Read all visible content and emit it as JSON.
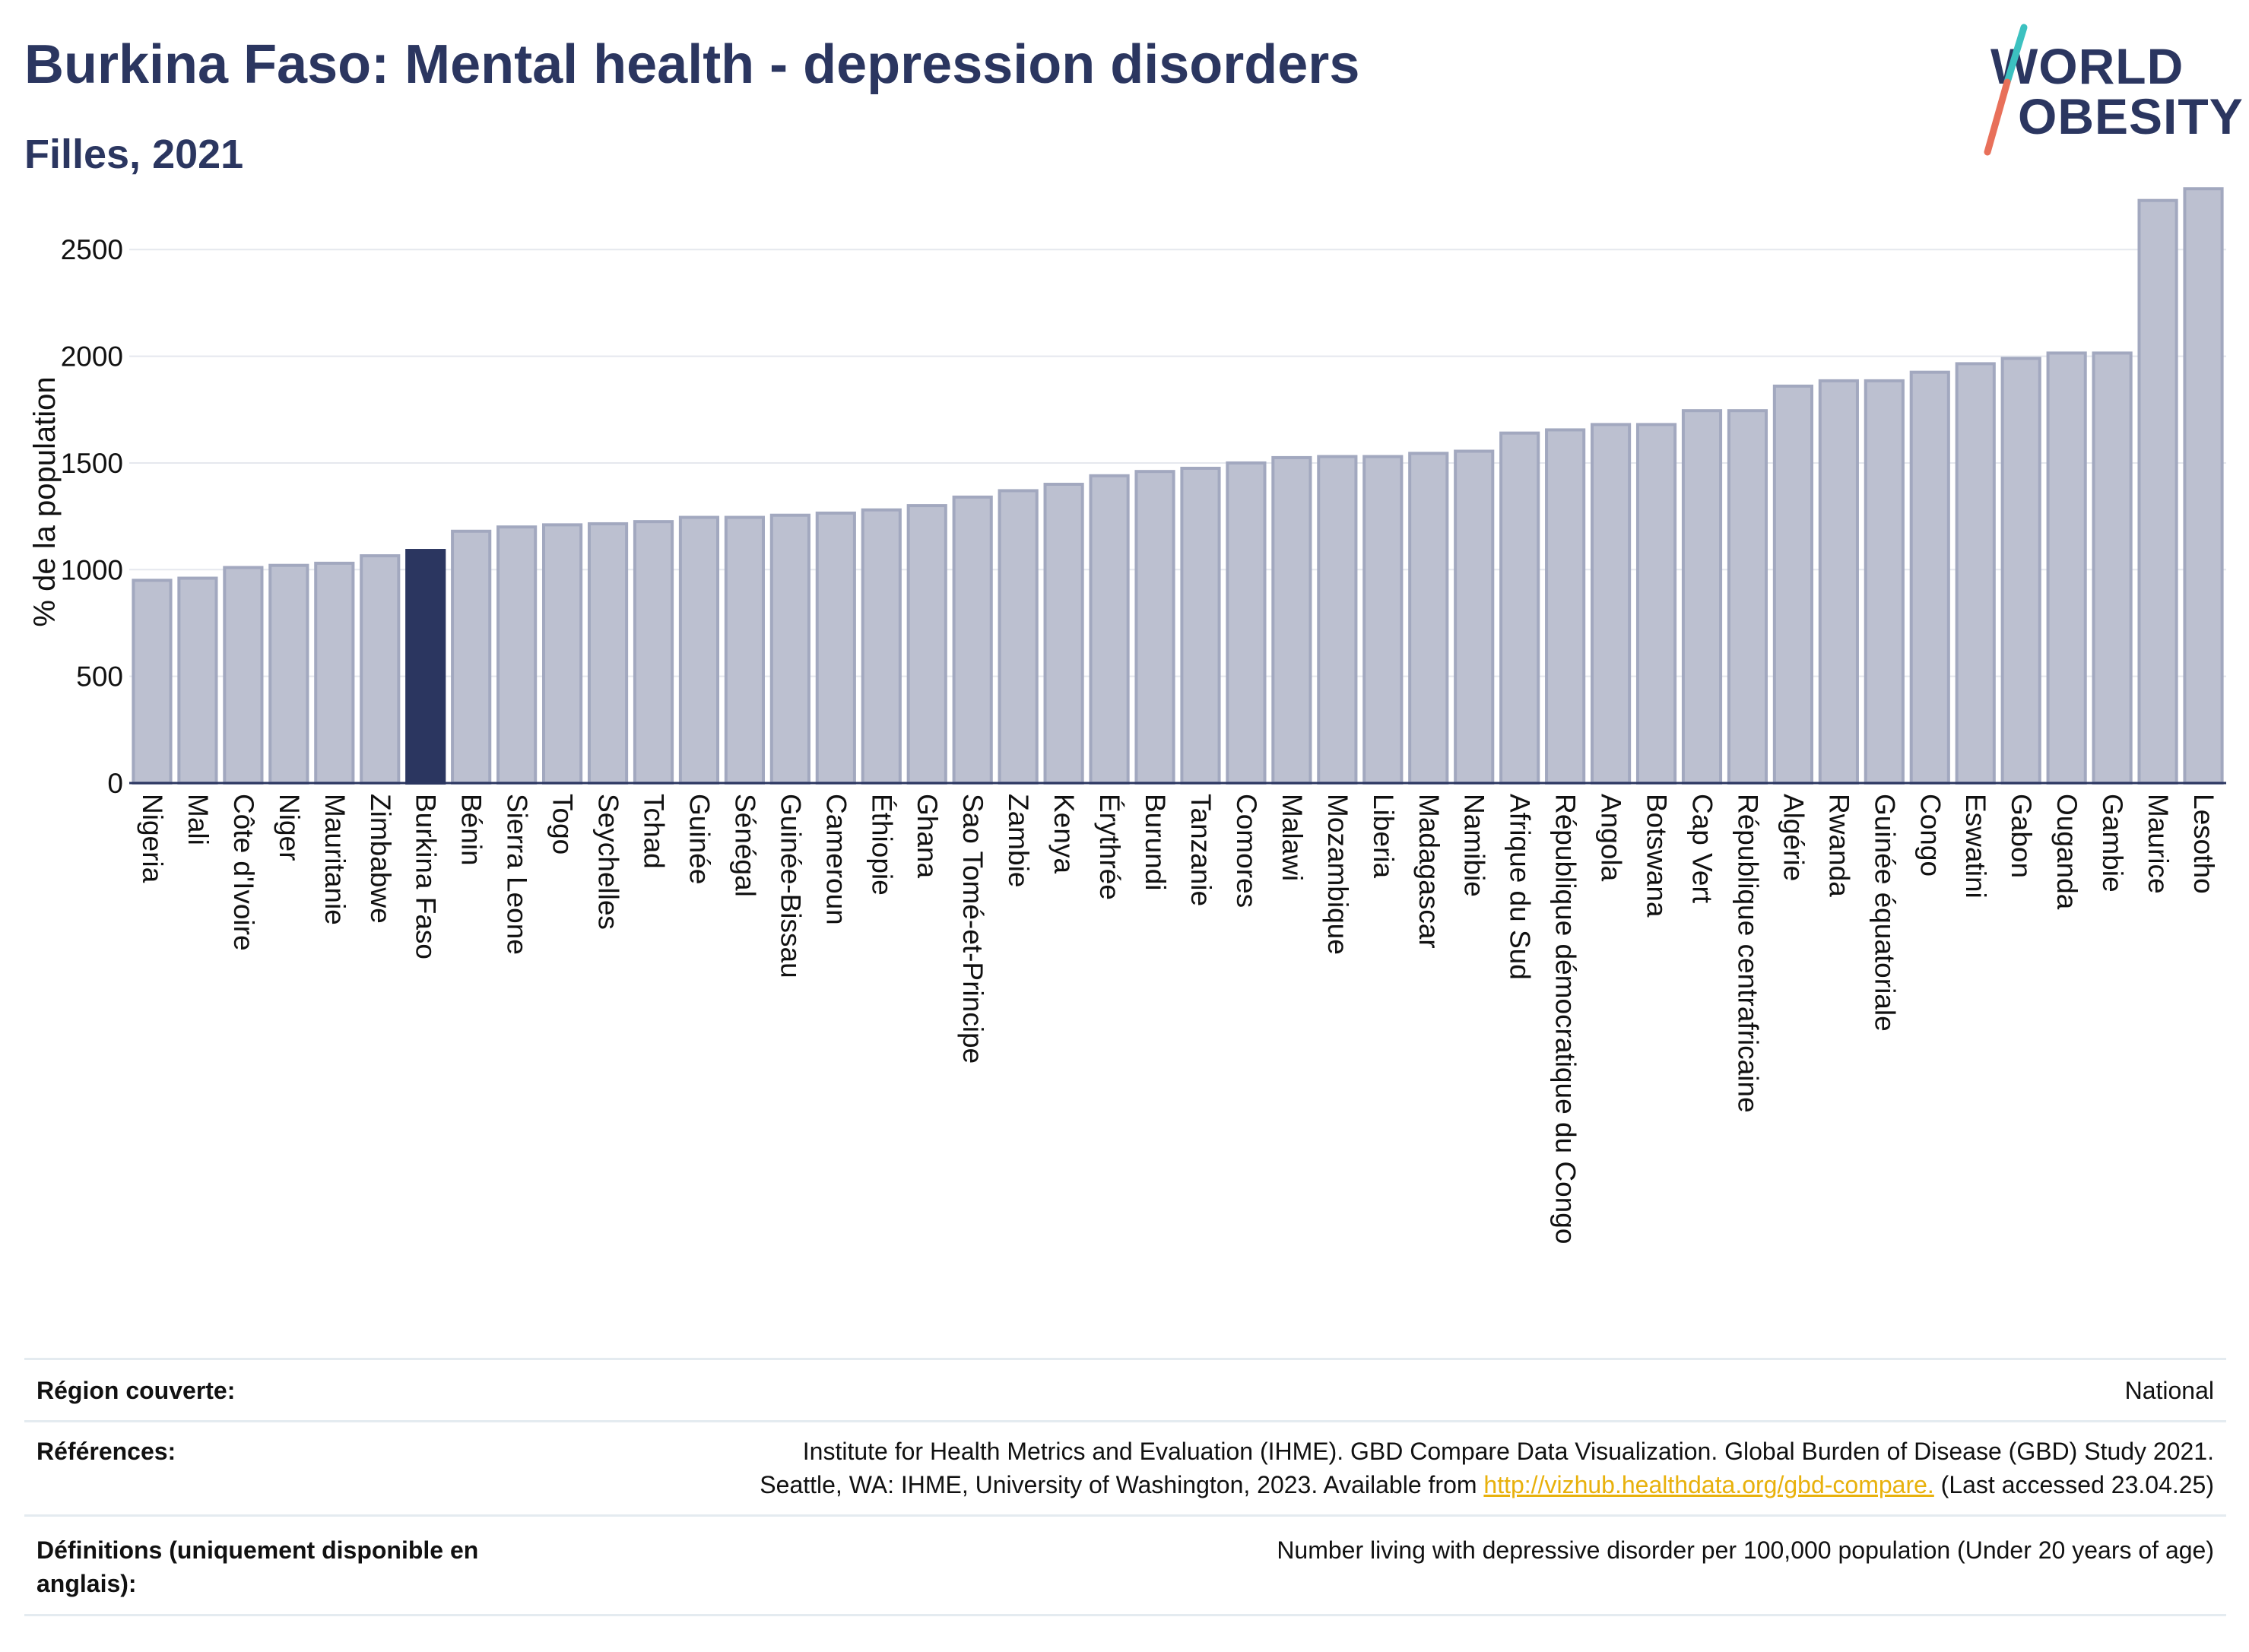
{
  "header": {
    "title": "Burkina Faso: Mental health - depression disorders",
    "subtitle": "Filles, 2021"
  },
  "logo": {
    "line1": "WORLD",
    "line2": "OBESITY",
    "colors": {
      "text": "#2b3660",
      "slash_top": "#3cc1c0",
      "slash_bottom": "#e8705a"
    }
  },
  "colors": {
    "bar": "#bcc0d0",
    "bar_stroke": "#a2a8bf",
    "highlight": "#2b3660",
    "axis": "#2b3660",
    "grid": "#e5e8ee"
  },
  "chart_data": {
    "type": "bar",
    "ylabel": "% de la population",
    "xlabel": "",
    "ylim": [
      0,
      2850
    ],
    "yticks": [
      0,
      500,
      1000,
      1500,
      2000,
      2500
    ],
    "grid": true,
    "highlight": "Burkina Faso",
    "categories": [
      "Nigeria",
      "Mali",
      "Côte d'Ivoire",
      "Niger",
      "Mauritanie",
      "Zimbabwe",
      "Burkina Faso",
      "Bénin",
      "Sierra Leone",
      "Togo",
      "Seychelles",
      "Tchad",
      "Guinée",
      "Sénégal",
      "Guinée-Bissau",
      "Cameroun",
      "Éthiopie",
      "Ghana",
      "Sao Tomé-et-Principe",
      "Zambie",
      "Kenya",
      "Érythrée",
      "Burundi",
      "Tanzanie",
      "Comores",
      "Malawi",
      "Mozambique",
      "Liberia",
      "Madagascar",
      "Namibie",
      "Afrique du Sud",
      "République démocratique du Congo",
      "Angola",
      "Botswana",
      "Cap Vert",
      "République centrafricaine",
      "Algérie",
      "Rwanda",
      "Guinée équatoriale",
      "Congo",
      "Eswatini",
      "Gabon",
      "Ouganda",
      "Gambie",
      "Maurice",
      "Lesotho"
    ],
    "values": [
      950,
      960,
      1010,
      1020,
      1030,
      1065,
      1090,
      1180,
      1200,
      1210,
      1215,
      1225,
      1245,
      1245,
      1255,
      1265,
      1280,
      1300,
      1340,
      1370,
      1400,
      1440,
      1460,
      1475,
      1500,
      1525,
      1530,
      1530,
      1545,
      1555,
      1640,
      1655,
      1680,
      1680,
      1745,
      1745,
      1860,
      1885,
      1885,
      1925,
      1965,
      1990,
      2015,
      2015,
      2730,
      2785
    ]
  },
  "footer": {
    "rows": [
      {
        "label": "Région couverte:",
        "value_lines": [
          "National"
        ]
      },
      {
        "label": "Références:",
        "value_lines": [
          "Institute for Health Metrics and Evaluation (IHME). GBD Compare Data Visualization. Global Burden of Disease (GBD) Study 2021.",
          "Seattle, WA: IHME, University of Washington, 2023. Available from"
        ],
        "link": "http://vizhub.healthdata.org/gbd-compare.",
        "after_link": "(Last accessed 23.04.25)"
      },
      {
        "label": "Définitions (uniquement disponible en anglais):",
        "value_lines": [
          "Number living with depressive disorder per 100,000 population (Under 20 years of age)"
        ]
      }
    ]
  }
}
